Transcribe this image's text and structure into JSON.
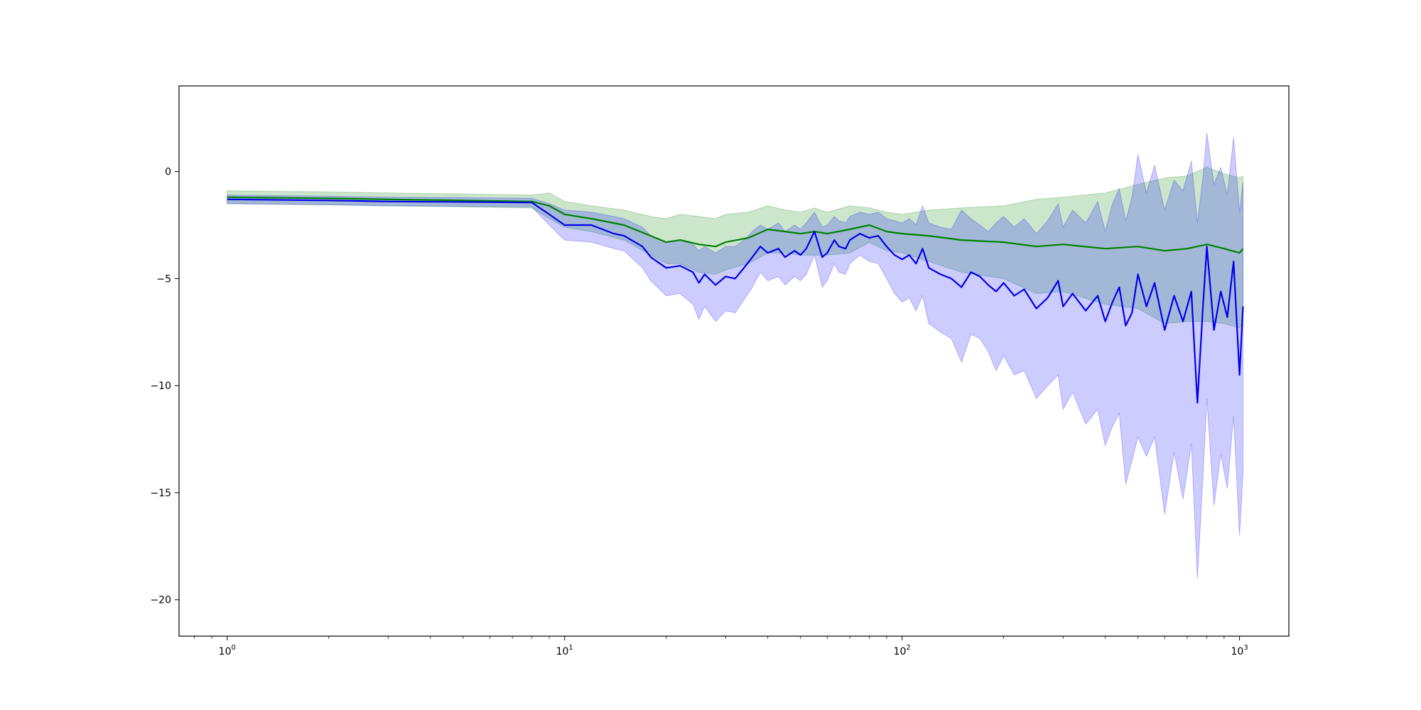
{
  "chart_data": {
    "type": "line",
    "title": "",
    "xlabel": "",
    "ylabel": "",
    "x_scale": "log",
    "xlim": [
      0.72,
      1400
    ],
    "ylim": [
      -21.7,
      4.0
    ],
    "grid": false,
    "legend": "none",
    "x_ticks": [
      {
        "value": 1,
        "base": "10",
        "exp": "0"
      },
      {
        "value": 10,
        "base": "10",
        "exp": "1"
      },
      {
        "value": 100,
        "base": "10",
        "exp": "2"
      },
      {
        "value": 1000,
        "base": "10",
        "exp": "3"
      }
    ],
    "y_ticks": [
      {
        "value": 0,
        "label": "0"
      },
      {
        "value": -5,
        "label": "−5"
      },
      {
        "value": -10,
        "label": "−10"
      },
      {
        "value": -15,
        "label": "−15"
      },
      {
        "value": -20,
        "label": "−20"
      }
    ],
    "series": [
      {
        "color": "#008000",
        "band_color": "#008000",
        "x": [
          1,
          2,
          3,
          5,
          8,
          9,
          10,
          12,
          15,
          18,
          20,
          22,
          25,
          28,
          30,
          35,
          40,
          45,
          50,
          55,
          60,
          70,
          80,
          90,
          100,
          120,
          150,
          200,
          250,
          300,
          400,
          500,
          600,
          700,
          800,
          900,
          1000,
          1024
        ],
        "y": [
          -1.2,
          -1.25,
          -1.3,
          -1.35,
          -1.4,
          -1.6,
          -2.0,
          -2.2,
          -2.5,
          -3.0,
          -3.3,
          -3.2,
          -3.4,
          -3.5,
          -3.3,
          -3.1,
          -2.7,
          -2.8,
          -2.9,
          -2.8,
          -2.9,
          -2.7,
          -2.5,
          -2.8,
          -2.9,
          -3.0,
          -3.2,
          -3.3,
          -3.5,
          -3.4,
          -3.6,
          -3.5,
          -3.7,
          -3.6,
          -3.4,
          -3.6,
          -3.8,
          -3.6
        ],
        "upper": [
          -0.9,
          -0.95,
          -1.0,
          -1.05,
          -1.1,
          -1.0,
          -1.4,
          -1.6,
          -1.8,
          -2.1,
          -2.2,
          -2.0,
          -2.1,
          -2.2,
          -2.0,
          -1.9,
          -1.6,
          -1.8,
          -1.9,
          -1.7,
          -1.9,
          -1.6,
          -1.7,
          -1.9,
          -2.0,
          -1.8,
          -1.7,
          -1.6,
          -1.3,
          -1.2,
          -1.0,
          -0.6,
          -0.3,
          -0.2,
          0.2,
          -0.1,
          -0.3,
          -0.2
        ],
        "lower": [
          -1.5,
          -1.55,
          -1.6,
          -1.65,
          -1.7,
          -2.2,
          -2.6,
          -2.8,
          -3.2,
          -3.9,
          -4.3,
          -4.3,
          -4.7,
          -4.8,
          -4.6,
          -4.3,
          -3.8,
          -3.8,
          -3.9,
          -3.9,
          -3.9,
          -3.8,
          -3.3,
          -3.7,
          -3.8,
          -4.2,
          -4.7,
          -5.0,
          -5.7,
          -5.6,
          -6.2,
          -6.4,
          -7.1,
          -7.0,
          -7.0,
          -7.1,
          -7.3,
          -7.0
        ]
      },
      {
        "color": "#0000ee",
        "band_color": "#0000ff",
        "x": [
          1,
          2,
          3,
          5,
          8,
          9,
          10,
          12,
          14,
          15,
          17,
          18,
          20,
          22,
          24,
          25,
          26,
          28,
          30,
          32,
          34,
          36,
          38,
          40,
          43,
          45,
          48,
          50,
          52,
          55,
          58,
          60,
          63,
          65,
          68,
          70,
          75,
          80,
          85,
          90,
          95,
          100,
          105,
          110,
          115,
          120,
          130,
          140,
          150,
          160,
          170,
          180,
          190,
          200,
          215,
          230,
          250,
          270,
          290,
          300,
          320,
          350,
          380,
          400,
          420,
          440,
          460,
          480,
          500,
          530,
          560,
          600,
          640,
          680,
          720,
          750,
          780,
          800,
          840,
          880,
          920,
          960,
          1000,
          1024
        ],
        "y": [
          -1.3,
          -1.35,
          -1.4,
          -1.42,
          -1.45,
          -2.0,
          -2.5,
          -2.5,
          -2.9,
          -3.0,
          -3.5,
          -4.0,
          -4.5,
          -4.4,
          -4.7,
          -5.2,
          -4.8,
          -5.3,
          -4.9,
          -5.0,
          -4.5,
          -4.0,
          -3.5,
          -3.8,
          -3.6,
          -4.0,
          -3.7,
          -3.9,
          -3.6,
          -2.8,
          -4.0,
          -3.8,
          -3.2,
          -3.5,
          -3.6,
          -3.2,
          -2.9,
          -3.1,
          -3.0,
          -3.5,
          -3.9,
          -4.1,
          -3.9,
          -4.3,
          -3.6,
          -4.5,
          -4.8,
          -5.0,
          -5.4,
          -4.7,
          -4.9,
          -5.3,
          -5.6,
          -5.2,
          -5.8,
          -5.5,
          -6.4,
          -5.9,
          -5.1,
          -6.3,
          -5.7,
          -6.5,
          -5.8,
          -7.0,
          -6.1,
          -5.4,
          -7.2,
          -6.6,
          -4.8,
          -6.3,
          -5.2,
          -7.4,
          -5.8,
          -7.0,
          -5.6,
          -10.8,
          -6.2,
          -3.5,
          -7.4,
          -5.6,
          -6.8,
          -4.2,
          -9.5,
          -6.3
        ],
        "upper": [
          -1.1,
          -1.15,
          -1.2,
          -1.22,
          -1.25,
          -1.5,
          -1.8,
          -1.9,
          -2.1,
          -2.2,
          -2.6,
          -3.0,
          -3.3,
          -3.2,
          -3.4,
          -3.7,
          -3.5,
          -3.8,
          -3.5,
          -3.5,
          -3.2,
          -2.8,
          -2.5,
          -2.7,
          -2.4,
          -2.8,
          -2.5,
          -2.7,
          -2.4,
          -1.9,
          -2.6,
          -2.5,
          -2.1,
          -2.3,
          -2.4,
          -2.1,
          -1.9,
          -2.0,
          -1.9,
          -2.2,
          -2.3,
          -2.4,
          -2.2,
          -2.5,
          -1.6,
          -2.4,
          -2.6,
          -2.7,
          -1.8,
          -2.2,
          -2.5,
          -2.8,
          -2.4,
          -2.1,
          -2.6,
          -2.2,
          -2.9,
          -2.3,
          -1.5,
          -2.6,
          -1.8,
          -2.4,
          -1.4,
          -2.8,
          -1.5,
          -0.8,
          -2.3,
          -1.2,
          0.8,
          -1.0,
          0.3,
          -1.8,
          -0.4,
          -0.9,
          0.5,
          -2.4,
          -0.2,
          1.8,
          -0.6,
          0.2,
          -1.1,
          1.6,
          -1.9,
          -0.5
        ],
        "lower": [
          -1.5,
          -1.55,
          -1.6,
          -1.62,
          -1.65,
          -2.5,
          -3.2,
          -3.3,
          -3.6,
          -3.7,
          -4.5,
          -5.1,
          -5.8,
          -5.7,
          -6.2,
          -6.9,
          -6.3,
          -7.0,
          -6.5,
          -6.6,
          -6.0,
          -5.4,
          -4.7,
          -5.1,
          -4.9,
          -5.3,
          -4.9,
          -5.1,
          -4.8,
          -3.9,
          -5.4,
          -5.1,
          -4.3,
          -4.7,
          -4.8,
          -4.3,
          -3.9,
          -4.2,
          -4.3,
          -5.0,
          -5.7,
          -6.1,
          -5.9,
          -6.5,
          -5.8,
          -7.1,
          -7.5,
          -7.8,
          -8.9,
          -7.6,
          -7.8,
          -8.4,
          -9.3,
          -8.6,
          -9.5,
          -9.3,
          -10.6,
          -10.0,
          -9.5,
          -11.1,
          -10.3,
          -11.8,
          -11.1,
          -12.8,
          -11.9,
          -11.3,
          -14.6,
          -13.5,
          -12.4,
          -13.3,
          -12.4,
          -16.0,
          -13.1,
          -15.3,
          -12.7,
          -19.0,
          -14.1,
          -10.6,
          -15.6,
          -13.2,
          -14.8,
          -11.4,
          -17.0,
          -14.1
        ]
      }
    ]
  }
}
